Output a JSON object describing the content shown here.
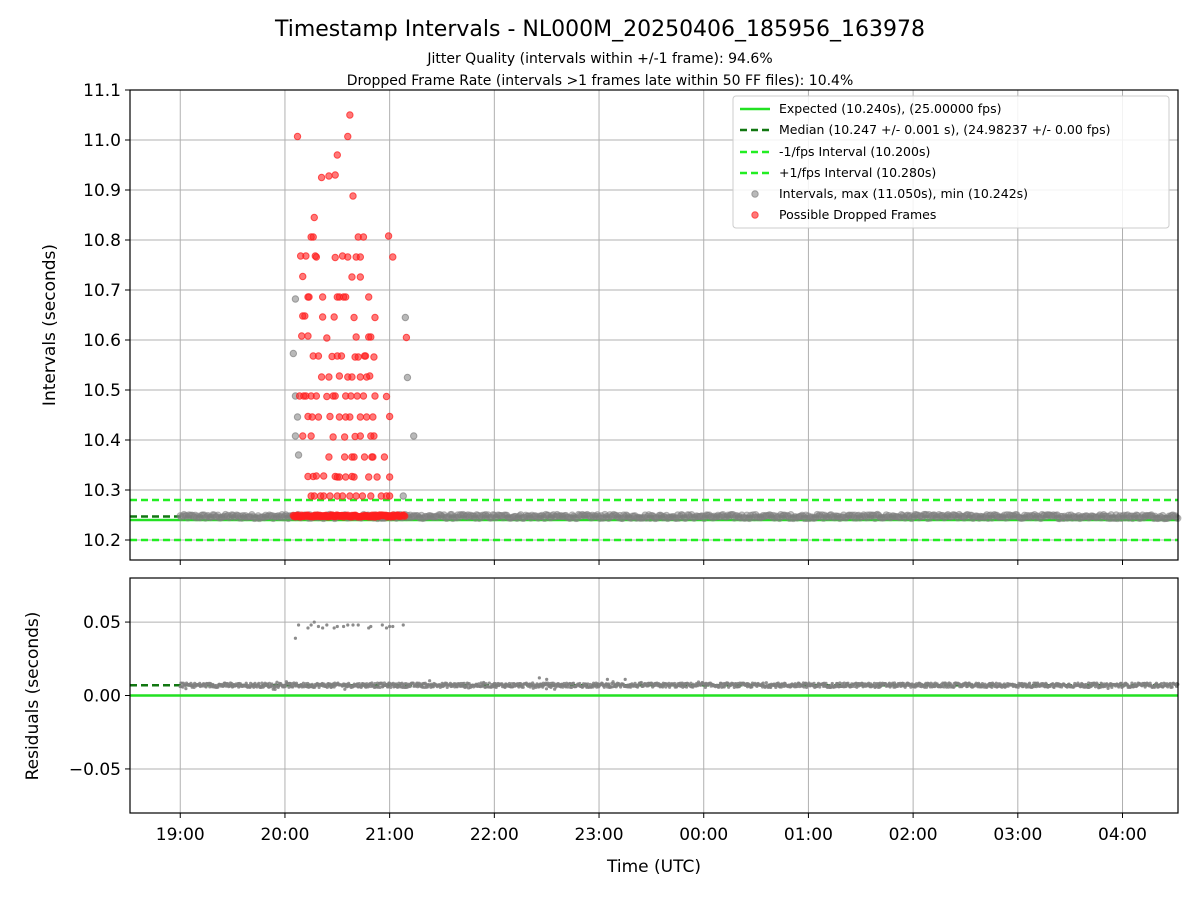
{
  "header": {
    "title": "Timestamp Intervals - NL000M_20250406_185956_163978",
    "subtitle1": "Jitter Quality (intervals within +/-1 frame): 94.6%",
    "subtitle2": "Dropped Frame Rate (intervals >1 frames late within 50 FF files): 10.4%"
  },
  "legend": {
    "expected": "Expected (10.240s), (25.00000 fps)",
    "median": "Median (10.247 +/- 0.001 s), (24.98237 +/- 0.00 fps)",
    "minus": "-1/fps Interval (10.200s)",
    "plus": "+1/fps Interval (10.280s)",
    "intervals": "Intervals, max (11.050s), min (10.242s)",
    "dropped": "Possible Dropped Frames"
  },
  "axes": {
    "top_ylabel": "Intervals (seconds)",
    "bottom_ylabel": "Residuals (seconds)",
    "xlabel": "Time (UTC)"
  },
  "colors": {
    "expected": "#22e122",
    "median": "#117711",
    "limit": "#22ee22",
    "interval": "#808080",
    "dropped": "#ff2020",
    "grid": "#b0b0b0"
  },
  "chart_data": [
    {
      "type": "scatter",
      "panel": "intervals",
      "title": "Timestamp Intervals - NL000M_20250406_185956_163978",
      "ylabel": "Intervals (seconds)",
      "xlim_hours": [
        18.52,
        28.53
      ],
      "ylim": [
        10.16,
        11.1
      ],
      "grid": true,
      "legend_position": "top-right",
      "yticks": [
        "10.2",
        "10.3",
        "10.4",
        "10.5",
        "10.6",
        "10.7",
        "10.8",
        "10.9",
        "11.0",
        "11.1"
      ],
      "hlines": {
        "expected": 10.24,
        "median": 10.247,
        "minus_1fps": 10.2,
        "plus_1fps": 10.28
      },
      "baseline_band": {
        "x_start": 19.0,
        "x_end": 28.53,
        "y_center": 10.247,
        "y_spread": 0.004
      },
      "dropped_cluster": {
        "x_start": 20.08,
        "x_end": 21.15,
        "y": 10.248
      },
      "dropped_frames": [
        [
          20.12,
          11.007
        ],
        [
          20.62,
          11.05
        ],
        [
          20.6,
          11.007
        ],
        [
          20.5,
          10.97
        ],
        [
          20.42,
          10.928
        ],
        [
          20.35,
          10.925
        ],
        [
          20.48,
          10.93
        ],
        [
          20.65,
          10.888
        ],
        [
          20.28,
          10.845
        ],
        [
          20.25,
          10.806
        ],
        [
          20.27,
          10.806
        ],
        [
          20.7,
          10.806
        ],
        [
          20.75,
          10.806
        ],
        [
          20.99,
          10.808
        ],
        [
          21.03,
          10.766
        ],
        [
          20.15,
          10.768
        ],
        [
          20.2,
          10.768
        ],
        [
          20.29,
          10.768
        ],
        [
          20.3,
          10.766
        ],
        [
          20.55,
          10.768
        ],
        [
          20.6,
          10.766
        ],
        [
          20.68,
          10.766
        ],
        [
          20.72,
          10.766
        ],
        [
          20.48,
          10.765
        ],
        [
          20.17,
          10.727
        ],
        [
          20.64,
          10.726
        ],
        [
          20.72,
          10.726
        ],
        [
          20.22,
          10.686
        ],
        [
          20.23,
          10.686
        ],
        [
          20.36,
          10.686
        ],
        [
          20.5,
          10.686
        ],
        [
          20.52,
          10.686
        ],
        [
          20.56,
          10.686
        ],
        [
          20.58,
          10.686
        ],
        [
          20.8,
          10.686
        ],
        [
          20.17,
          10.648
        ],
        [
          20.19,
          10.648
        ],
        [
          20.36,
          10.646
        ],
        [
          20.47,
          10.646
        ],
        [
          20.66,
          10.645
        ],
        [
          20.86,
          10.645
        ],
        [
          21.16,
          10.605
        ],
        [
          20.16,
          10.608
        ],
        [
          20.22,
          10.608
        ],
        [
          20.4,
          10.604
        ],
        [
          20.68,
          10.606
        ],
        [
          20.8,
          10.606
        ],
        [
          20.82,
          10.606
        ],
        [
          20.27,
          10.568
        ],
        [
          20.32,
          10.568
        ],
        [
          20.45,
          10.567
        ],
        [
          20.5,
          10.568
        ],
        [
          20.54,
          10.568
        ],
        [
          20.67,
          10.566
        ],
        [
          20.7,
          10.566
        ],
        [
          20.76,
          10.568
        ],
        [
          20.77,
          10.568
        ],
        [
          20.85,
          10.566
        ],
        [
          20.35,
          10.526
        ],
        [
          20.42,
          10.526
        ],
        [
          20.52,
          10.528
        ],
        [
          20.6,
          10.526
        ],
        [
          20.64,
          10.526
        ],
        [
          20.72,
          10.526
        ],
        [
          20.78,
          10.526
        ],
        [
          20.81,
          10.528
        ],
        [
          20.14,
          10.488
        ],
        [
          20.18,
          10.488
        ],
        [
          20.2,
          10.488
        ],
        [
          20.25,
          10.488
        ],
        [
          20.3,
          10.488
        ],
        [
          20.4,
          10.487
        ],
        [
          20.46,
          10.488
        ],
        [
          20.48,
          10.488
        ],
        [
          20.58,
          10.488
        ],
        [
          20.63,
          10.488
        ],
        [
          20.69,
          10.488
        ],
        [
          20.75,
          10.488
        ],
        [
          20.86,
          10.488
        ],
        [
          20.97,
          10.487
        ],
        [
          20.22,
          10.447
        ],
        [
          20.26,
          10.446
        ],
        [
          20.32,
          10.446
        ],
        [
          20.43,
          10.447
        ],
        [
          20.52,
          10.446
        ],
        [
          20.58,
          10.446
        ],
        [
          20.62,
          10.446
        ],
        [
          20.72,
          10.446
        ],
        [
          20.78,
          10.446
        ],
        [
          20.84,
          10.446
        ],
        [
          21.0,
          10.447
        ],
        [
          20.17,
          10.408
        ],
        [
          20.25,
          10.408
        ],
        [
          20.46,
          10.406
        ],
        [
          20.57,
          10.406
        ],
        [
          20.67,
          10.407
        ],
        [
          20.72,
          10.408
        ],
        [
          20.82,
          10.408
        ],
        [
          20.85,
          10.408
        ],
        [
          20.42,
          10.366
        ],
        [
          20.57,
          10.366
        ],
        [
          20.64,
          10.366
        ],
        [
          20.66,
          10.366
        ],
        [
          20.76,
          10.366
        ],
        [
          20.83,
          10.366
        ],
        [
          20.84,
          10.366
        ],
        [
          20.95,
          10.366
        ],
        [
          20.22,
          10.327
        ],
        [
          20.27,
          10.327
        ],
        [
          20.3,
          10.328
        ],
        [
          20.37,
          10.328
        ],
        [
          20.48,
          10.327
        ],
        [
          20.5,
          10.326
        ],
        [
          20.52,
          10.326
        ],
        [
          20.58,
          10.326
        ],
        [
          20.64,
          10.327
        ],
        [
          20.66,
          10.326
        ],
        [
          20.8,
          10.326
        ],
        [
          20.88,
          10.326
        ],
        [
          21.0,
          10.326
        ],
        [
          20.25,
          10.288
        ],
        [
          20.28,
          10.288
        ],
        [
          20.34,
          10.288
        ],
        [
          20.37,
          10.288
        ],
        [
          20.43,
          10.288
        ],
        [
          20.5,
          10.288
        ],
        [
          20.55,
          10.288
        ],
        [
          20.62,
          10.288
        ],
        [
          20.68,
          10.288
        ],
        [
          20.74,
          10.288
        ],
        [
          20.82,
          10.288
        ],
        [
          20.92,
          10.288
        ],
        [
          20.97,
          10.288
        ],
        [
          21.0,
          10.288
        ]
      ],
      "gray_outliers": [
        [
          20.1,
          10.682
        ],
        [
          20.08,
          10.573
        ],
        [
          20.1,
          10.488
        ],
        [
          20.12,
          10.446
        ],
        [
          20.1,
          10.408
        ],
        [
          20.13,
          10.37
        ],
        [
          21.15,
          10.645
        ],
        [
          21.17,
          10.525
        ],
        [
          21.23,
          10.408
        ],
        [
          21.13,
          10.288
        ]
      ]
    },
    {
      "type": "scatter",
      "panel": "residuals",
      "ylabel": "Residuals (seconds)",
      "xlabel": "Time (UTC)",
      "xlim_hours": [
        18.52,
        28.53
      ],
      "ylim": [
        -0.08,
        0.08
      ],
      "grid": true,
      "yticks": [
        "0.05",
        "0.00",
        "−0.05"
      ],
      "xticks": [
        "19:00",
        "20:00",
        "21:00",
        "22:00",
        "23:00",
        "00:00",
        "01:00",
        "02:00",
        "03:00",
        "04:00"
      ],
      "hlines": {
        "expected": 0.0,
        "median": 0.007
      },
      "baseline_band": {
        "x_start": 19.0,
        "x_end": 28.53,
        "y_center": 0.007,
        "y_spread": 0.0015
      },
      "outliers": [
        [
          20.1,
          0.039
        ],
        [
          20.13,
          0.048
        ],
        [
          20.22,
          0.046
        ],
        [
          20.25,
          0.048
        ],
        [
          20.28,
          0.05
        ],
        [
          20.32,
          0.047
        ],
        [
          20.36,
          0.046
        ],
        [
          20.4,
          0.048
        ],
        [
          20.47,
          0.046
        ],
        [
          20.5,
          0.047
        ],
        [
          20.56,
          0.047
        ],
        [
          20.6,
          0.048
        ],
        [
          20.65,
          0.048
        ],
        [
          20.7,
          0.048
        ],
        [
          20.8,
          0.046
        ],
        [
          20.82,
          0.047
        ],
        [
          20.93,
          0.048
        ],
        [
          20.97,
          0.046
        ],
        [
          21.0,
          0.047
        ],
        [
          21.03,
          0.047
        ],
        [
          21.13,
          0.048
        ],
        [
          22.43,
          0.012
        ],
        [
          22.5,
          0.011
        ],
        [
          23.08,
          0.011
        ],
        [
          23.25,
          0.011
        ]
      ]
    }
  ]
}
